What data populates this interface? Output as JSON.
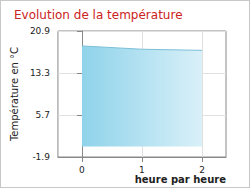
{
  "chart_data": {
    "type": "line",
    "title": "Evolution de la température",
    "x_label": "heure par heure",
    "y_label": "Température en °C",
    "x": [
      0,
      1,
      2
    ],
    "values": [
      18.2,
      17.6,
      17.4
    ],
    "color": "#8fd3ea",
    "xlim": [
      -0.4,
      2.4
    ],
    "xticks": [
      0,
      1,
      2
    ],
    "ylim": [
      -1.9,
      20.9
    ],
    "yticks": [
      -1.9,
      5.7,
      13.3,
      20.9
    ],
    "grid": true
  }
}
